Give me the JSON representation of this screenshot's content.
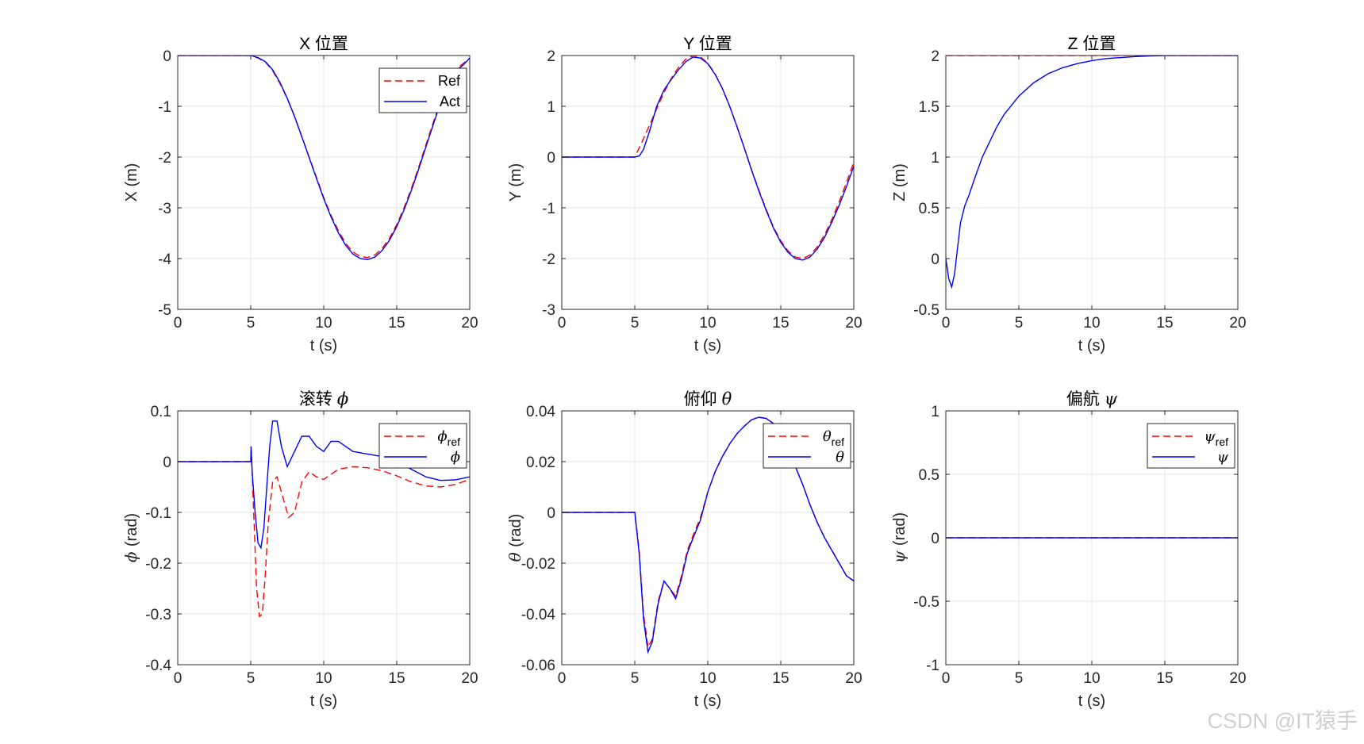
{
  "watermark": "CSDN @IT猿手",
  "colors": {
    "ref": "#ff0000",
    "act": "#0000ff",
    "grid": "#e6e6e6",
    "axis": "#262626"
  },
  "chart_data": [
    {
      "type": "line",
      "title": "X 位置",
      "title_symbol": "",
      "xlabel": "t (s)",
      "ylabel": "X (m)",
      "ylabel_symbol": "",
      "xlim": [
        0,
        20
      ],
      "ylim": [
        -5,
        0
      ],
      "xticks": [
        0,
        5,
        10,
        15,
        20
      ],
      "yticks": [
        -5,
        -4,
        -3,
        -2,
        -1,
        0
      ],
      "grid": true,
      "legend_position": "top-right",
      "series": [
        {
          "name": "Ref",
          "name_base": "Ref",
          "name_sub": "",
          "style": "dashed",
          "color": "#ff0000",
          "x": [
            0,
            5,
            5.5,
            6,
            6.5,
            7,
            7.5,
            8,
            8.5,
            9,
            9.5,
            10,
            10.5,
            11,
            11.5,
            12,
            12.5,
            13,
            13.5,
            14,
            14.5,
            15,
            15.5,
            16,
            16.5,
            17,
            17.5,
            18,
            18.5,
            19,
            19.5,
            20
          ],
          "y": [
            0,
            0,
            -0.05,
            -0.13,
            -0.3,
            -0.55,
            -0.85,
            -1.2,
            -1.6,
            -2.0,
            -2.4,
            -2.8,
            -3.15,
            -3.45,
            -3.7,
            -3.87,
            -3.96,
            -3.98,
            -3.93,
            -3.8,
            -3.6,
            -3.33,
            -3.0,
            -2.62,
            -2.2,
            -1.76,
            -1.32,
            -0.9,
            -0.5,
            -0.27,
            -0.17,
            -0.05
          ]
        },
        {
          "name": "Act",
          "name_base": "Act",
          "name_sub": "",
          "style": "solid",
          "color": "#0000ff",
          "x": [
            0,
            5,
            5.5,
            6,
            6.5,
            7,
            7.5,
            8,
            8.5,
            9,
            9.5,
            10,
            10.5,
            11,
            11.5,
            12,
            12.5,
            13,
            13.5,
            14,
            14.5,
            15,
            15.5,
            16,
            16.5,
            17,
            17.5,
            18,
            18.5,
            19,
            19.5,
            20
          ],
          "y": [
            0,
            0,
            -0.04,
            -0.12,
            -0.28,
            -0.53,
            -0.84,
            -1.2,
            -1.6,
            -2.01,
            -2.42,
            -2.82,
            -3.18,
            -3.49,
            -3.74,
            -3.91,
            -4.0,
            -4.02,
            -3.97,
            -3.84,
            -3.64,
            -3.37,
            -3.04,
            -2.66,
            -2.24,
            -1.8,
            -1.36,
            -0.93,
            -0.55,
            -0.3,
            -0.2,
            -0.05
          ]
        }
      ]
    },
    {
      "type": "line",
      "title": "Y 位置",
      "title_symbol": "",
      "xlabel": "t (s)",
      "ylabel": "Y (m)",
      "ylabel_symbol": "",
      "xlim": [
        0,
        20
      ],
      "ylim": [
        -3,
        2
      ],
      "xticks": [
        0,
        5,
        10,
        15,
        20
      ],
      "yticks": [
        -3,
        -2,
        -1,
        0,
        1,
        2
      ],
      "grid": true,
      "legend_position": "none",
      "series": [
        {
          "name": "",
          "style": "dashed",
          "color": "#ff0000",
          "x": [
            0,
            5,
            5.5,
            6,
            6.5,
            7,
            7.5,
            8,
            8.5,
            9,
            9.5,
            10,
            10.5,
            11,
            11.5,
            12,
            12.5,
            13,
            13.5,
            14,
            14.5,
            15,
            15.5,
            16,
            16.5,
            17,
            17.5,
            18,
            18.5,
            19,
            19.5,
            20
          ],
          "y": [
            0,
            0,
            0.3,
            0.62,
            0.95,
            1.27,
            1.55,
            1.77,
            1.93,
            2.0,
            1.97,
            1.85,
            1.64,
            1.35,
            1.0,
            0.6,
            0.18,
            -0.25,
            -0.65,
            -1.03,
            -1.38,
            -1.65,
            -1.85,
            -1.97,
            -2.0,
            -1.93,
            -1.77,
            -1.53,
            -1.23,
            -0.88,
            -0.5,
            -0.1
          ]
        },
        {
          "name": "",
          "style": "solid",
          "color": "#0000ff",
          "x": [
            0,
            5,
            5.3,
            5.6,
            6,
            6.5,
            7,
            7.5,
            8,
            8.5,
            9,
            9.5,
            10,
            10.5,
            11,
            11.5,
            12,
            12.5,
            13,
            13.5,
            14,
            14.5,
            15,
            15.5,
            16,
            16.5,
            17,
            17.5,
            18,
            18.5,
            19,
            19.5,
            20
          ],
          "y": [
            0,
            0,
            0.02,
            0.15,
            0.5,
            1.0,
            1.32,
            1.53,
            1.72,
            1.88,
            1.97,
            1.95,
            1.84,
            1.63,
            1.35,
            1.0,
            0.6,
            0.18,
            -0.26,
            -0.67,
            -1.05,
            -1.4,
            -1.68,
            -1.88,
            -2.0,
            -2.03,
            -1.97,
            -1.81,
            -1.58,
            -1.28,
            -0.95,
            -0.58,
            -0.18
          ]
        }
      ]
    },
    {
      "type": "line",
      "title": "Z 位置",
      "title_symbol": "",
      "xlabel": "t (s)",
      "ylabel": "Z (m)",
      "ylabel_symbol": "",
      "xlim": [
        0,
        20
      ],
      "ylim": [
        -0.5,
        2
      ],
      "xticks": [
        0,
        5,
        10,
        15,
        20
      ],
      "yticks": [
        -0.5,
        0,
        0.5,
        1,
        1.5,
        2
      ],
      "grid": true,
      "legend_position": "none",
      "series": [
        {
          "name": "",
          "style": "dashed",
          "color": "#ff0000",
          "x": [
            0,
            20
          ],
          "y": [
            2,
            2
          ]
        },
        {
          "name": "",
          "style": "solid",
          "color": "#0000ff",
          "x": [
            0,
            0.2,
            0.4,
            0.6,
            0.8,
            1.0,
            1.3,
            1.6,
            2,
            2.5,
            3,
            3.5,
            4,
            5,
            6,
            7,
            8,
            9,
            10,
            11,
            12,
            13,
            14,
            15,
            16,
            17,
            18,
            19,
            20
          ],
          "y": [
            0,
            -0.2,
            -0.28,
            -0.15,
            0.1,
            0.35,
            0.52,
            0.63,
            0.8,
            1.0,
            1.15,
            1.3,
            1.42,
            1.6,
            1.73,
            1.82,
            1.88,
            1.92,
            1.95,
            1.97,
            1.98,
            1.99,
            1.995,
            2.0,
            2.0,
            2.0,
            2.0,
            2.0,
            2.0
          ]
        }
      ]
    },
    {
      "type": "line",
      "title": "滚转",
      "title_symbol": "ϕ",
      "xlabel": "t (s)",
      "ylabel": "(rad)",
      "ylabel_symbol": "ϕ",
      "xlim": [
        0,
        20
      ],
      "ylim": [
        -0.4,
        0.1
      ],
      "xticks": [
        0,
        5,
        10,
        15,
        20
      ],
      "yticks": [
        -0.4,
        -0.3,
        -0.2,
        -0.1,
        0,
        0.1
      ],
      "grid": true,
      "legend_position": "top-right",
      "series": [
        {
          "name": "ϕref",
          "name_base": "ϕ",
          "name_sub": "ref",
          "style": "dashed",
          "color": "#ff0000",
          "x": [
            0,
            5,
            5.05,
            5.2,
            5.4,
            5.6,
            5.8,
            6.0,
            6.2,
            6.5,
            6.8,
            7.2,
            7.6,
            8.0,
            8.5,
            9,
            9.5,
            10,
            10.5,
            11,
            12,
            13,
            14,
            15,
            16,
            17,
            18,
            19,
            20
          ],
          "y": [
            0,
            0,
            0.02,
            -0.1,
            -0.25,
            -0.305,
            -0.3,
            -0.22,
            -0.12,
            -0.04,
            -0.03,
            -0.07,
            -0.11,
            -0.1,
            -0.04,
            -0.02,
            -0.03,
            -0.035,
            -0.025,
            -0.015,
            -0.01,
            -0.012,
            -0.018,
            -0.028,
            -0.04,
            -0.048,
            -0.05,
            -0.045,
            -0.035
          ]
        },
        {
          "name": "ϕ",
          "name_base": "ϕ",
          "name_sub": "",
          "style": "solid",
          "color": "#0000ff",
          "x": [
            0,
            5,
            5.02,
            5.1,
            5.3,
            5.5,
            5.7,
            5.9,
            6.1,
            6.3,
            6.5,
            6.8,
            7.1,
            7.5,
            8,
            8.5,
            9,
            9.5,
            10,
            10.5,
            11,
            11.5,
            12,
            13,
            14,
            15,
            16,
            17,
            18,
            19,
            20
          ],
          "y": [
            0,
            0,
            0.03,
            -0.02,
            -0.1,
            -0.16,
            -0.17,
            -0.13,
            -0.05,
            0.03,
            0.08,
            0.08,
            0.03,
            -0.01,
            0.02,
            0.05,
            0.05,
            0.03,
            0.02,
            0.04,
            0.04,
            0.03,
            0.02,
            0.015,
            0.01,
            0.0,
            -0.015,
            -0.03,
            -0.037,
            -0.036,
            -0.03
          ]
        }
      ]
    },
    {
      "type": "line",
      "title": "俯仰",
      "title_symbol": "θ",
      "xlabel": "t (s)",
      "ylabel": "(rad)",
      "ylabel_symbol": "θ",
      "xlim": [
        0,
        20
      ],
      "ylim": [
        -0.06,
        0.04
      ],
      "xticks": [
        0,
        5,
        10,
        15,
        20
      ],
      "yticks": [
        -0.06,
        -0.04,
        -0.02,
        0,
        0.02,
        0.04
      ],
      "grid": true,
      "legend_position": "top-right",
      "series": [
        {
          "name": "θref",
          "name_base": "θ",
          "name_sub": "ref",
          "style": "dashed",
          "color": "#ff0000",
          "x": [
            0,
            5,
            5.3,
            5.6,
            5.9,
            6.2,
            6.6,
            7.0,
            7.4,
            7.8,
            8.2,
            8.6,
            9,
            9.5,
            10,
            10.5,
            11,
            11.5,
            12,
            12.5,
            13,
            13.5,
            14,
            14.5,
            15,
            15.5,
            16,
            16.5,
            17,
            17.5,
            18,
            18.5,
            19,
            19.5,
            20
          ],
          "y": [
            0,
            0,
            -0.015,
            -0.04,
            -0.053,
            -0.05,
            -0.035,
            -0.027,
            -0.03,
            -0.033,
            -0.025,
            -0.015,
            -0.009,
            -0.002,
            0.008,
            0.016,
            0.022,
            0.027,
            0.031,
            0.034,
            0.0365,
            0.0375,
            0.037,
            0.035,
            0.031,
            0.025,
            0.018,
            0.011,
            0.003,
            -0.004,
            -0.01,
            -0.015,
            -0.02,
            -0.025,
            -0.027
          ]
        },
        {
          "name": "θ",
          "name_base": "θ",
          "name_sub": "",
          "style": "solid",
          "color": "#0000ff",
          "x": [
            0,
            5,
            5.3,
            5.6,
            5.9,
            6.2,
            6.6,
            7.0,
            7.4,
            7.8,
            8.2,
            8.6,
            9,
            9.5,
            10,
            10.5,
            11,
            11.5,
            12,
            12.5,
            13,
            13.5,
            14,
            14.5,
            15,
            15.5,
            16,
            16.5,
            17,
            17.5,
            18,
            18.5,
            19,
            19.5,
            20
          ],
          "y": [
            0,
            0,
            -0.016,
            -0.042,
            -0.055,
            -0.051,
            -0.036,
            -0.027,
            -0.03,
            -0.034,
            -0.026,
            -0.016,
            -0.01,
            -0.003,
            0.008,
            0.016,
            0.022,
            0.027,
            0.031,
            0.034,
            0.0365,
            0.0375,
            0.037,
            0.035,
            0.031,
            0.025,
            0.018,
            0.011,
            0.003,
            -0.004,
            -0.01,
            -0.015,
            -0.02,
            -0.025,
            -0.027
          ]
        }
      ]
    },
    {
      "type": "line",
      "title": "偏航",
      "title_symbol": "ψ",
      "xlabel": "t (s)",
      "ylabel": "(rad)",
      "ylabel_symbol": "ψ",
      "xlim": [
        0,
        20
      ],
      "ylim": [
        -1,
        1
      ],
      "xticks": [
        0,
        5,
        10,
        15,
        20
      ],
      "yticks": [
        -1,
        -0.5,
        0,
        0.5,
        1
      ],
      "grid": true,
      "legend_position": "top-right",
      "series": [
        {
          "name": "ψref",
          "name_base": "ψ",
          "name_sub": "ref",
          "style": "dashed",
          "color": "#ff0000",
          "x": [
            0,
            20
          ],
          "y": [
            0,
            0
          ]
        },
        {
          "name": "ψ",
          "name_base": "ψ",
          "name_sub": "",
          "style": "solid",
          "color": "#0000ff",
          "x": [
            0,
            20
          ],
          "y": [
            0,
            0
          ]
        }
      ]
    }
  ]
}
